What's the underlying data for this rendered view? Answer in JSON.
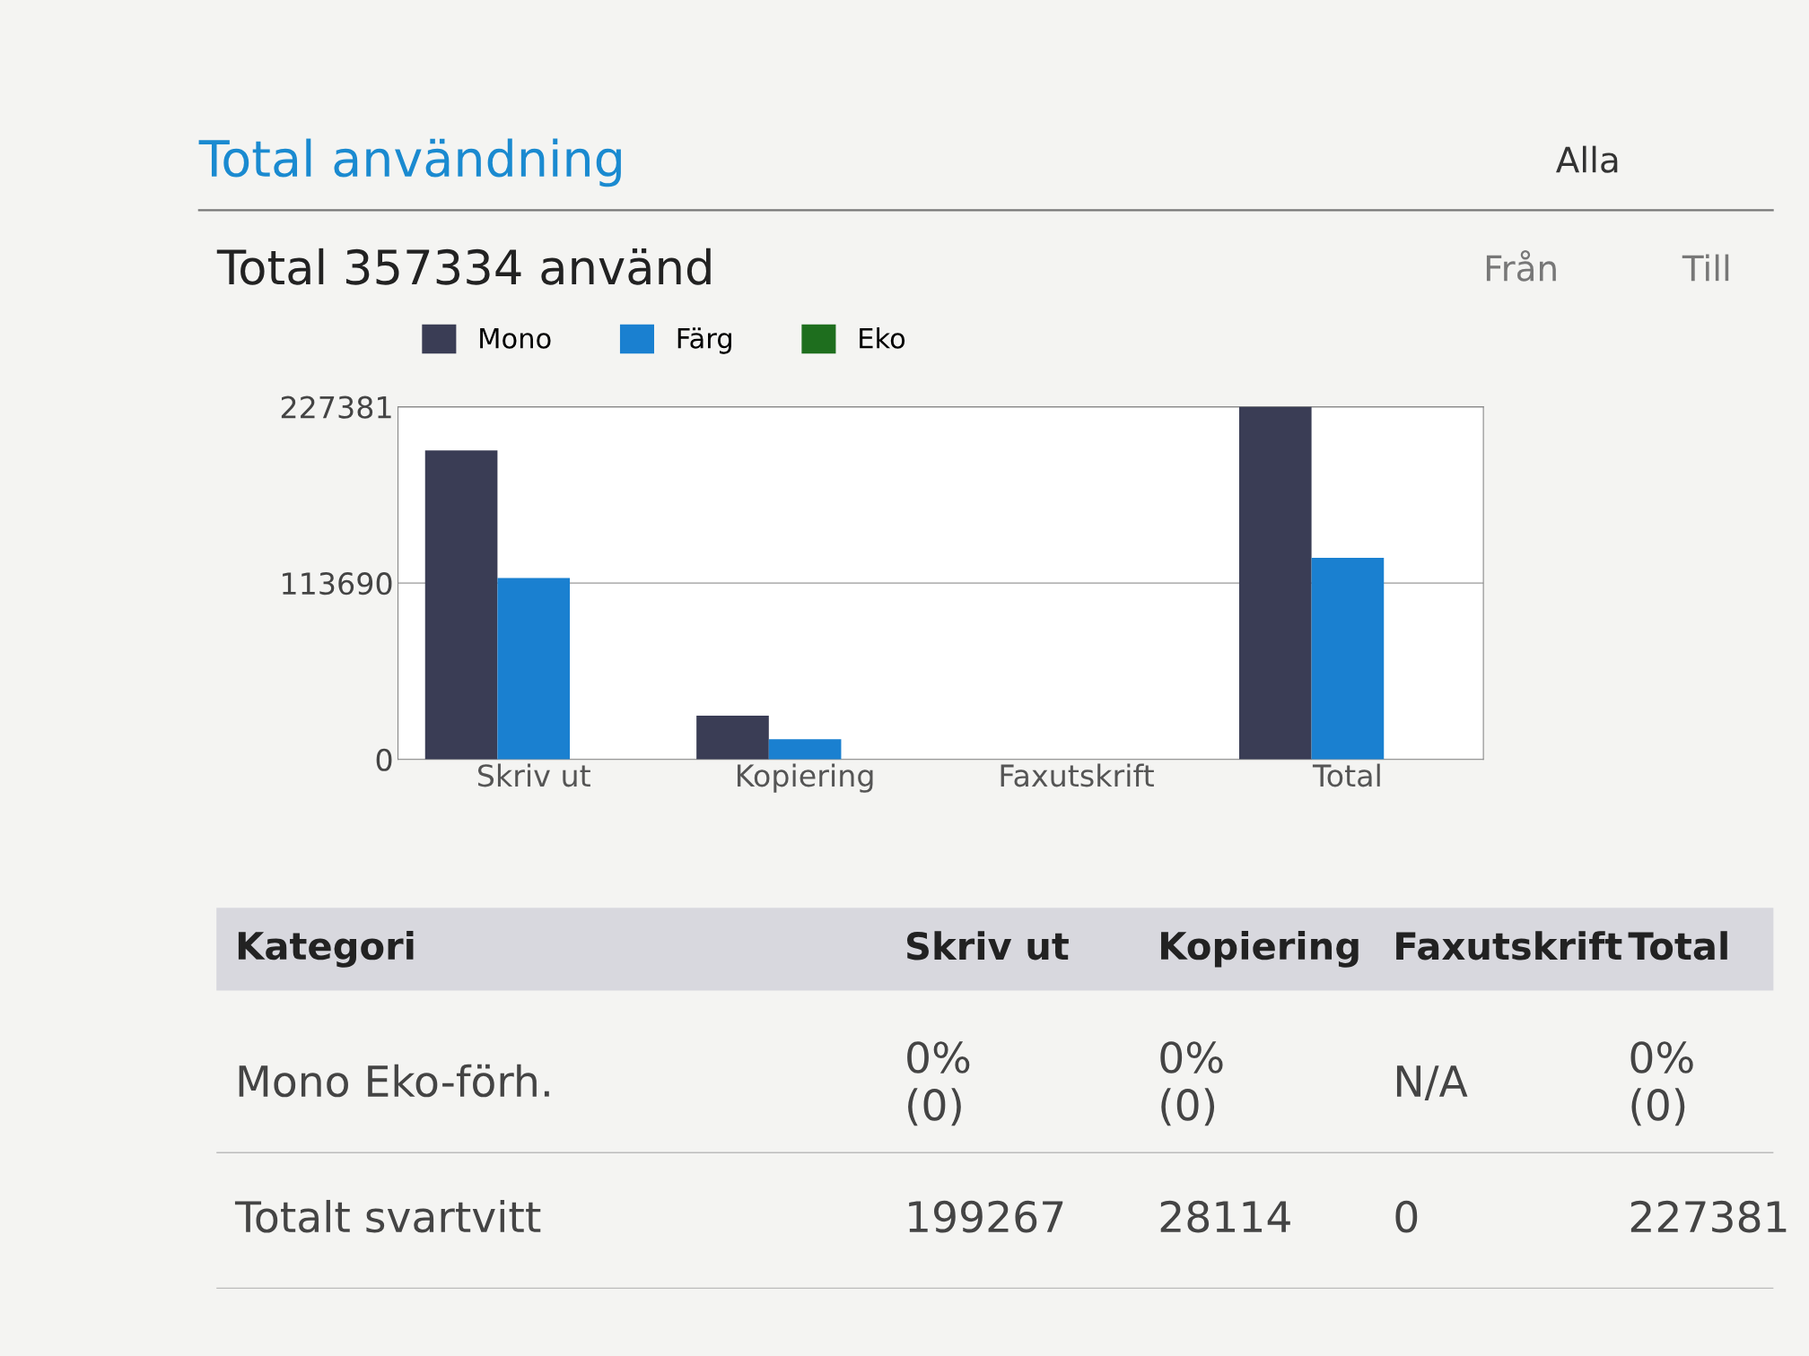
{
  "chart_data": {
    "type": "bar",
    "title": "Total användning",
    "subtitle": "Total 357334 använd",
    "categories": [
      "Skriv ut",
      "Kopiering",
      "Faxutskrift",
      "Total"
    ],
    "series": [
      {
        "name": "Mono",
        "color": "#3a3d55",
        "values": [
          199267,
          28114,
          0,
          227381
        ]
      },
      {
        "name": "Färg",
        "color": "#1a80d0",
        "values": [
          117000,
          13000,
          0,
          129953
        ]
      },
      {
        "name": "Eko",
        "color": "#1e6e1e",
        "values": [
          0,
          0,
          0,
          0
        ]
      }
    ],
    "ylim": [
      0,
      227381
    ],
    "yticks": [
      0,
      113690,
      227381
    ],
    "grid": "y",
    "legend": "top left",
    "annotations": [
      "Alla",
      "Från",
      "Till",
      "Kategori",
      "Skriv ut",
      "Kopiering",
      "Faxutskrift",
      "Total",
      "Mono Eko-förh.",
      "0%\n(0)",
      "0%\n(0)",
      "N/A",
      "0%\n(0)",
      "Totalt svartvitt",
      "199267",
      "28114",
      "0",
      "227381"
    ]
  }
}
